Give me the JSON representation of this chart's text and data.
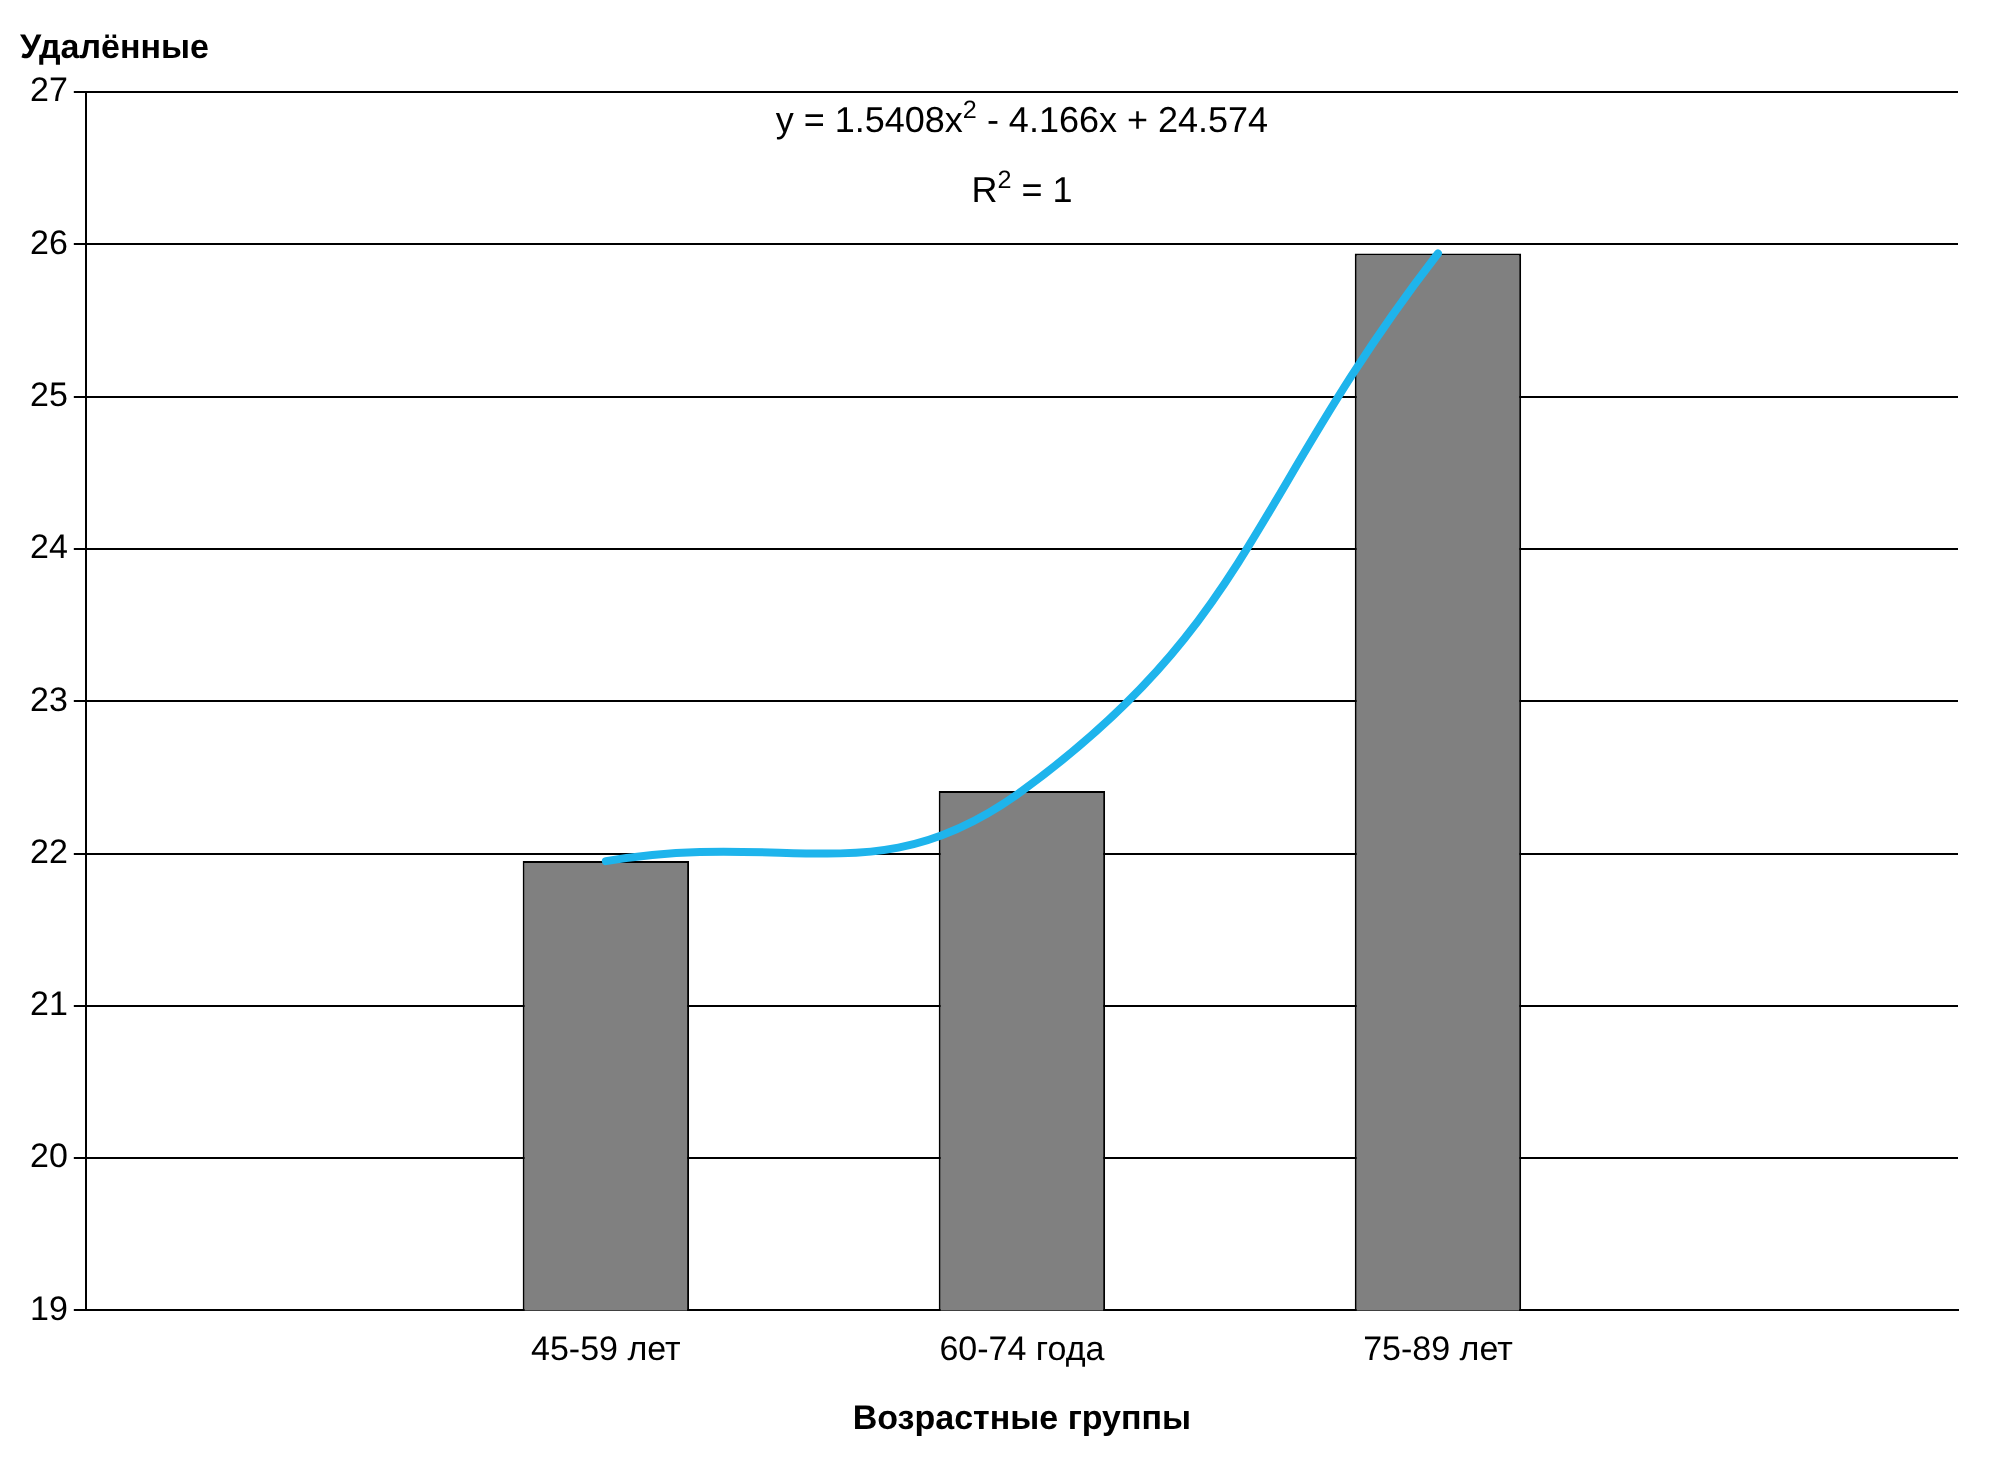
{
  "chart_data": {
    "type": "bar",
    "xlabel": "Возрастные группы",
    "ylabel": "Удалённые",
    "categories": [
      "45-59 лет",
      "60-74 года",
      "75-89 лет"
    ],
    "series": [
      {
        "color": "#808080",
        "values": [
          21.95,
          22.41,
          25.94
        ]
      },
      {
        "type": "line",
        "color": "#1eb4ec",
        "values": [
          21.95,
          22.41,
          25.94
        ]
      }
    ],
    "ylim": [
      19,
      27
    ],
    "yticks": [
      19,
      20,
      21,
      22,
      23,
      24,
      25,
      26,
      27
    ],
    "grid": "y",
    "legend": false,
    "marker": "none",
    "line_style": "solid",
    "annotations": [
      "y = 1.5408x$^{2}$ - 4.166x + 24.574",
      "R$^{2}$ = 1"
    ]
  }
}
